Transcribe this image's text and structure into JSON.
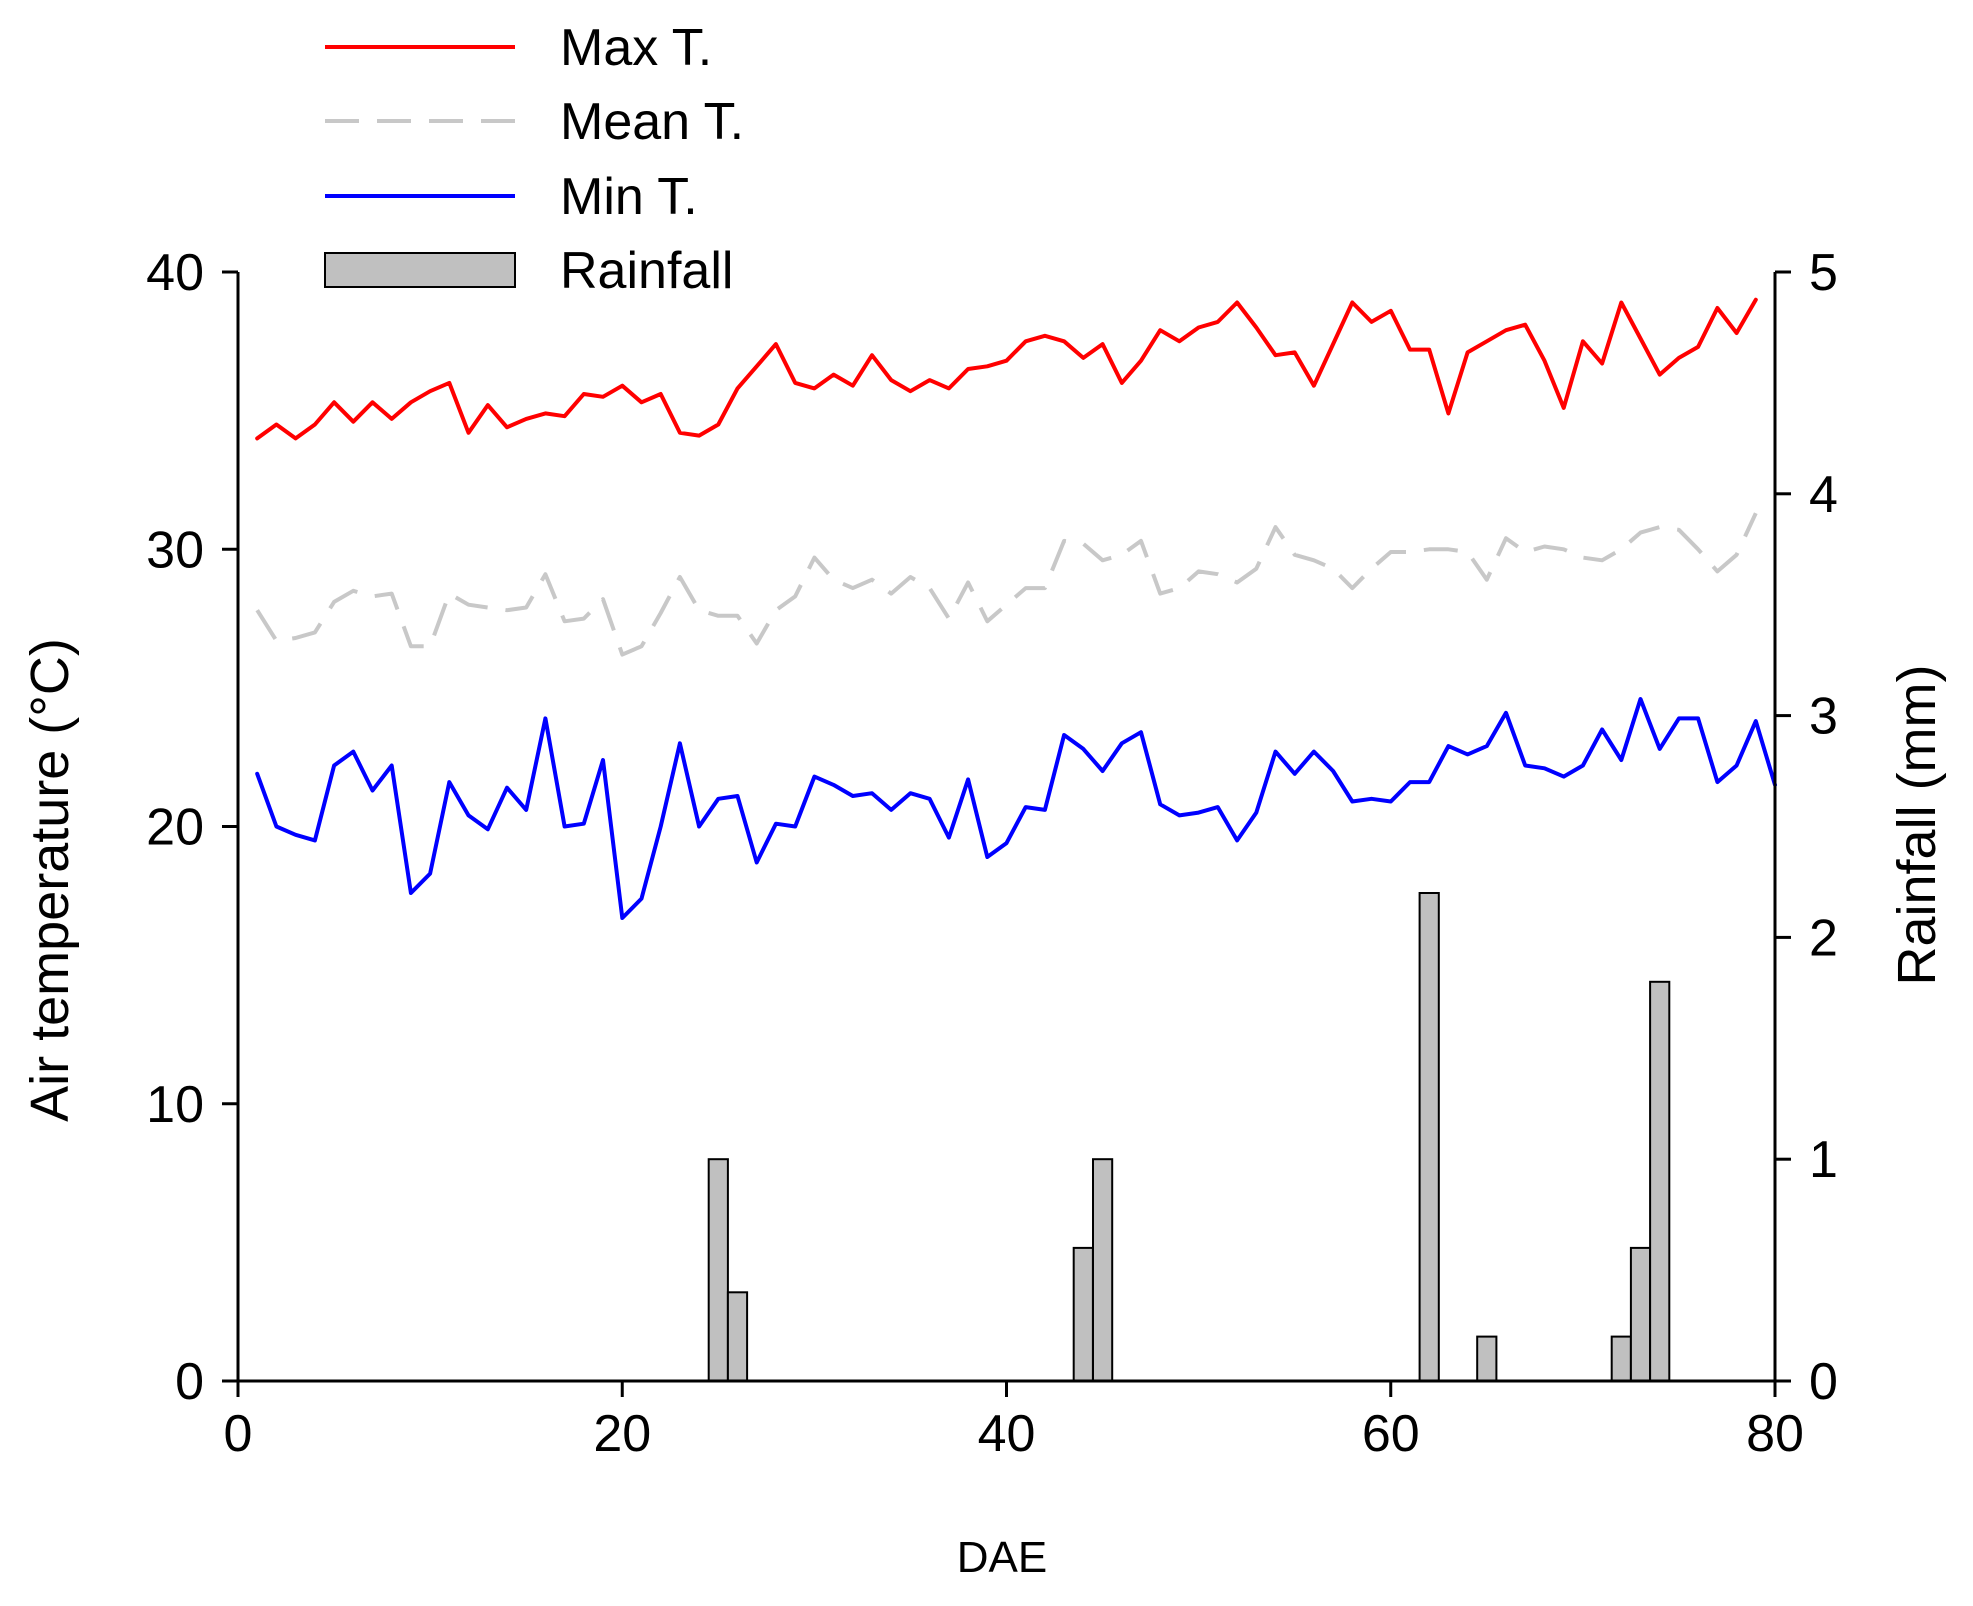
{
  "chart_data": {
    "type": "line",
    "title": "",
    "xlabel": "DAE",
    "ylabel": "Air temperature (°C)",
    "y2label": "Rainfall (mm)",
    "xlim": [
      0,
      80
    ],
    "ylim": [
      0,
      40
    ],
    "y2lim": [
      0,
      5
    ],
    "xticks": [
      "0",
      "20",
      "40",
      "60",
      "80"
    ],
    "yticks": [
      "0",
      "10",
      "20",
      "30",
      "40"
    ],
    "y2ticks": [
      "0",
      "1",
      "2",
      "3",
      "4",
      "5"
    ],
    "grid": false,
    "legend_position": "top-left",
    "colors": {
      "max": "#ff0000",
      "mean": "#c8c8c8",
      "min": "#0000ff",
      "rain_fill": "#c0c0c0",
      "rain_stroke": "#000000"
    },
    "legend": [
      {
        "label": "Max T.",
        "key": "max",
        "style": "line"
      },
      {
        "label": "Mean T.",
        "key": "mean",
        "style": "dashed"
      },
      {
        "label": "Min T.",
        "key": "min",
        "style": "line"
      },
      {
        "label": "Rainfall",
        "key": "rain",
        "style": "bar"
      }
    ],
    "x": [
      1,
      2,
      3,
      4,
      5,
      6,
      7,
      8,
      9,
      10,
      11,
      12,
      13,
      14,
      15,
      16,
      17,
      18,
      19,
      20,
      21,
      22,
      23,
      24,
      25,
      26,
      27,
      28,
      29,
      30,
      31,
      32,
      33,
      34,
      35,
      36,
      37,
      38,
      39,
      40,
      41,
      42,
      43,
      44,
      45,
      46,
      47,
      48,
      49,
      50,
      51,
      52,
      53,
      54,
      55,
      56,
      57,
      58,
      59,
      60,
      61,
      62,
      63,
      64,
      65,
      66,
      67,
      68,
      69,
      70,
      71,
      72,
      73,
      74,
      75,
      76,
      77,
      78,
      79,
      80
    ],
    "series": [
      {
        "name": "Max T.",
        "key": "max",
        "axis": "left",
        "values": [
          34.0,
          34.5,
          34.0,
          34.5,
          35.3,
          34.6,
          35.3,
          34.7,
          35.3,
          35.7,
          36.0,
          34.2,
          35.2,
          34.4,
          34.7,
          34.9,
          34.8,
          35.6,
          35.5,
          35.9,
          35.3,
          35.6,
          34.2,
          34.1,
          34.5,
          35.8,
          36.6,
          37.4,
          36.0,
          35.8,
          36.3,
          35.9,
          37.0,
          36.1,
          35.7,
          36.1,
          35.8,
          36.5,
          36.6,
          36.8,
          37.5,
          37.7,
          37.5,
          36.9,
          37.4,
          36.0,
          36.8,
          37.9,
          37.5,
          38.0,
          38.2,
          38.9,
          38.0,
          37.0,
          37.1,
          35.9,
          37.4,
          38.9,
          38.2,
          38.6,
          37.2,
          37.2,
          34.9,
          37.1,
          37.5,
          37.9,
          38.1,
          36.8,
          35.1,
          37.5,
          36.7,
          38.9,
          37.6,
          36.3,
          36.9,
          37.3,
          38.7,
          37.8,
          39.0,
          null
        ]
      },
      {
        "name": "Mean T.",
        "key": "mean",
        "axis": "left",
        "values": [
          27.8,
          26.7,
          26.8,
          27.0,
          28.1,
          28.5,
          28.3,
          28.4,
          26.5,
          26.5,
          28.4,
          28.0,
          27.9,
          27.8,
          27.9,
          29.1,
          27.4,
          27.5,
          28.2,
          26.2,
          26.5,
          27.7,
          29.0,
          27.8,
          27.6,
          27.6,
          26.6,
          27.8,
          28.3,
          29.7,
          28.9,
          28.6,
          28.9,
          28.4,
          29.0,
          28.6,
          27.5,
          28.8,
          27.4,
          28.0,
          28.6,
          28.6,
          30.3,
          30.2,
          29.6,
          29.8,
          30.3,
          28.4,
          28.6,
          29.2,
          29.1,
          28.8,
          29.3,
          30.8,
          29.8,
          29.6,
          29.3,
          28.6,
          29.3,
          29.9,
          29.9,
          30.0,
          30.0,
          29.9,
          28.9,
          30.4,
          29.9,
          30.1,
          30.0,
          29.7,
          29.6,
          30.0,
          30.6,
          30.8,
          30.7,
          30.0,
          29.2,
          29.8,
          31.3,
          null
        ]
      },
      {
        "name": "Min T.",
        "key": "min",
        "axis": "left",
        "values": [
          21.9,
          20.0,
          19.7,
          19.5,
          22.2,
          22.7,
          21.3,
          22.2,
          17.6,
          18.3,
          21.6,
          20.4,
          19.9,
          21.4,
          20.6,
          23.9,
          20.0,
          20.1,
          22.4,
          16.7,
          17.4,
          20.0,
          23.0,
          20.0,
          21.0,
          21.1,
          18.7,
          20.1,
          20.0,
          21.8,
          21.5,
          21.1,
          21.2,
          20.6,
          21.2,
          21.0,
          19.6,
          21.7,
          18.9,
          19.4,
          20.7,
          20.6,
          23.3,
          22.8,
          22.0,
          23.0,
          23.4,
          20.8,
          20.4,
          20.5,
          20.7,
          19.5,
          20.5,
          22.7,
          21.9,
          22.7,
          22.0,
          20.9,
          21.0,
          20.9,
          21.6,
          21.6,
          22.9,
          22.6,
          22.9,
          24.1,
          22.2,
          22.1,
          21.8,
          22.2,
          23.5,
          22.4,
          24.6,
          22.8,
          23.9,
          23.9,
          21.6,
          22.2,
          23.8,
          21.5
        ]
      },
      {
        "name": "Rainfall",
        "key": "rain",
        "axis": "right",
        "type": "bar",
        "values": [
          0,
          0,
          0,
          0,
          0,
          0,
          0,
          0,
          0,
          0,
          0,
          0,
          0,
          0,
          0,
          0,
          0,
          0,
          0,
          0,
          0,
          0,
          0,
          0,
          1.0,
          0.4,
          0,
          0,
          0,
          0,
          0,
          0,
          0,
          0,
          0,
          0,
          0,
          0,
          0,
          0,
          0,
          0,
          0,
          0.6,
          1.0,
          0,
          0,
          0,
          0,
          0,
          0,
          0,
          0,
          0,
          0,
          0,
          0,
          0,
          0,
          0,
          0,
          2.2,
          0,
          0,
          0.2,
          0,
          0,
          0,
          0,
          0,
          0,
          0.2,
          0.6,
          1.8,
          0,
          0,
          0,
          0,
          0,
          0
        ]
      }
    ]
  }
}
